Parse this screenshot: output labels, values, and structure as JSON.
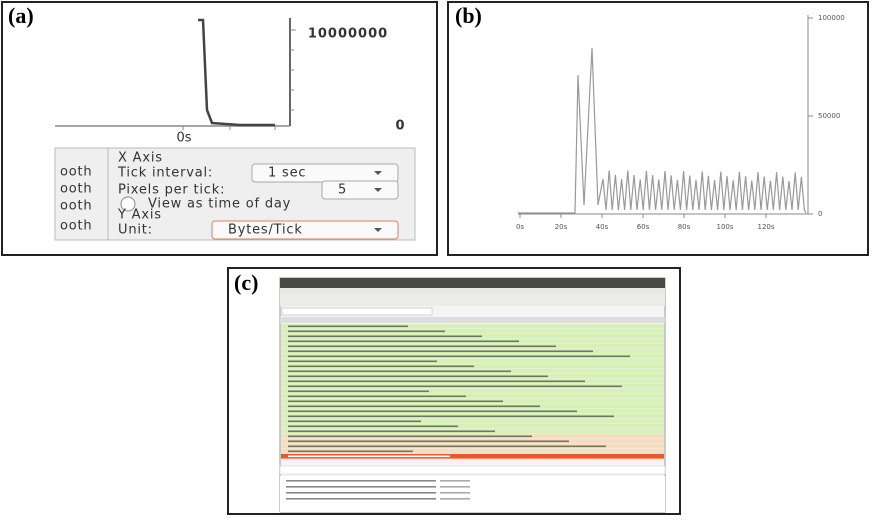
{
  "panels": [
    {
      "label": "(a)",
      "graph": {
        "y_top": "10000000",
        "y_bottom": "0",
        "x_tick": "0s"
      },
      "settings": {
        "fragments": [
          "ooth",
          "ooth",
          "ooth",
          "ooth"
        ],
        "x_axis": "X Axis",
        "tick_interval_label": "Tick interval:",
        "tick_interval_value": "1 sec",
        "pixels_label": "Pixels per tick:",
        "pixels_value": "5",
        "time_of_day": "View as time of day",
        "y_axis": "Y Axis",
        "unit_label": "Unit:",
        "unit_value": "Bytes/Tick"
      }
    },
    {
      "label": "(b)",
      "yticks": [
        "100000",
        "50000",
        "0"
      ],
      "xticks": [
        "0s",
        "20s",
        "40s",
        "60s",
        "80s",
        "100s",
        "120s"
      ]
    },
    {
      "label": "(c)"
    }
  ]
}
